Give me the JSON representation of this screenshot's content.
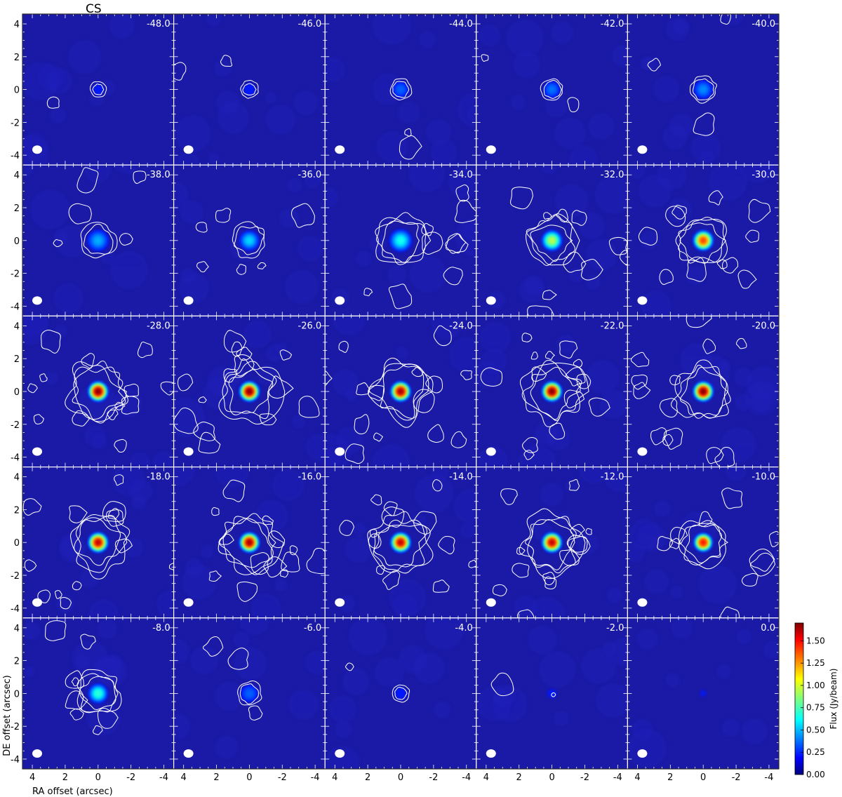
{
  "figure": {
    "molecule_title": "CS",
    "xlabel": "RA offset (arcsec)",
    "ylabel": "DE offset (arcsec)",
    "colorbar_label": "Flux (Jy/beam)",
    "colorbar_ticks": [
      "0.00",
      "0.25",
      "0.50",
      "0.75",
      "1.00",
      "1.25",
      "1.50"
    ],
    "colorbar_values": [
      0.0,
      0.25,
      0.5,
      0.75,
      1.0,
      1.25,
      1.5
    ],
    "colorbar_max": 1.7,
    "x_ticks": [
      "4",
      "2",
      "0",
      "-2",
      "-4"
    ],
    "x_tick_values": [
      4,
      2,
      0,
      -2,
      -4
    ],
    "y_ticks": [
      "4",
      "2",
      "0",
      "-2",
      "-4"
    ],
    "y_tick_values": [
      4,
      2,
      0,
      -2,
      -4
    ],
    "axis_range": [
      -4.6,
      4.6
    ],
    "grid_rows": 5,
    "grid_cols": 5,
    "background_color": "#1a1aa6",
    "contour_color": "#ffffff"
  },
  "panels": [
    {
      "velocity": "-48.0",
      "peak": 0.18,
      "size": 0.25,
      "extent": 0.1
    },
    {
      "velocity": "-46.0",
      "peak": 0.22,
      "size": 0.3,
      "extent": 0.12
    },
    {
      "velocity": "-44.0",
      "peak": 0.35,
      "size": 0.4,
      "extent": 0.15
    },
    {
      "velocity": "-42.0",
      "peak": 0.38,
      "size": 0.42,
      "extent": 0.16
    },
    {
      "velocity": "-40.0",
      "peak": 0.42,
      "size": 0.5,
      "extent": 0.22
    },
    {
      "velocity": "-38.0",
      "peak": 0.48,
      "size": 0.6,
      "extent": 0.35
    },
    {
      "velocity": "-36.0",
      "peak": 0.55,
      "size": 0.55,
      "extent": 0.45
    },
    {
      "velocity": "-34.0",
      "peak": 0.65,
      "size": 0.65,
      "extent": 0.65
    },
    {
      "velocity": "-32.0",
      "peak": 0.95,
      "size": 0.6,
      "extent": 0.7
    },
    {
      "velocity": "-30.0",
      "peak": 1.4,
      "size": 0.6,
      "extent": 0.75
    },
    {
      "velocity": "-28.0",
      "peak": 1.7,
      "size": 0.6,
      "extent": 0.95
    },
    {
      "velocity": "-26.0",
      "peak": 1.7,
      "size": 0.6,
      "extent": 1.0
    },
    {
      "velocity": "-24.0",
      "peak": 1.65,
      "size": 0.6,
      "extent": 1.0
    },
    {
      "velocity": "-22.0",
      "peak": 1.7,
      "size": 0.6,
      "extent": 1.0
    },
    {
      "velocity": "-20.0",
      "peak": 1.7,
      "size": 0.6,
      "extent": 0.95
    },
    {
      "velocity": "-18.0",
      "peak": 1.6,
      "size": 0.6,
      "extent": 0.95
    },
    {
      "velocity": "-16.0",
      "peak": 1.65,
      "size": 0.6,
      "extent": 0.95
    },
    {
      "velocity": "-14.0",
      "peak": 1.6,
      "size": 0.6,
      "extent": 0.95
    },
    {
      "velocity": "-12.0",
      "peak": 1.6,
      "size": 0.6,
      "extent": 0.95
    },
    {
      "velocity": "-10.0",
      "peak": 1.5,
      "size": 0.55,
      "extent": 0.7
    },
    {
      "velocity": "-8.0",
      "peak": 0.7,
      "size": 0.55,
      "extent": 0.6
    },
    {
      "velocity": "-6.0",
      "peak": 0.35,
      "size": 0.45,
      "extent": 0.2
    },
    {
      "velocity": "-4.0",
      "peak": 0.12,
      "size": 0.3,
      "extent": 0.1
    },
    {
      "velocity": "-2.0",
      "peak": 0.05,
      "size": 0.2,
      "extent": 0.05
    },
    {
      "velocity": "0.0",
      "peak": 0.02,
      "size": 0.1,
      "extent": 0.0
    }
  ]
}
